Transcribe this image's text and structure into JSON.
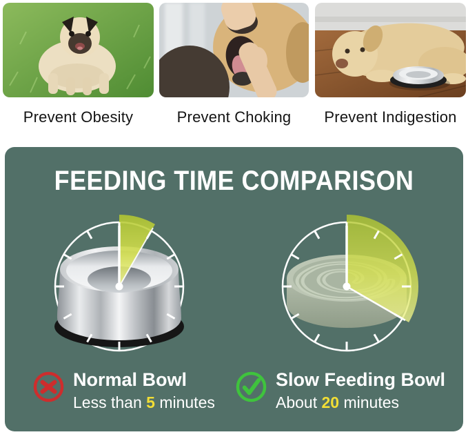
{
  "benefits": [
    {
      "caption": "Prevent Obesity",
      "image": "fat-pug-on-grass-photo"
    },
    {
      "caption": "Prevent Choking",
      "image": "hand-checking-dog-mouth-photo"
    },
    {
      "caption": "Prevent Indigestion",
      "image": "labrador-lying-by-bowl-photo"
    }
  ],
  "panel": {
    "title": "FEEDING TIME COMPARISON"
  },
  "comparison": {
    "left": {
      "icon": "x-icon",
      "name": "Normal Bowl",
      "duration_prefix": "Less than ",
      "duration_value": "5",
      "duration_suffix": " minutes",
      "minutes": 5,
      "bowl": "stainless-steel-bowl"
    },
    "right": {
      "icon": "check-icon",
      "name": "Slow Feeding Bowl",
      "duration_prefix": "About ",
      "duration_value": "20",
      "duration_suffix": " minutes",
      "minutes": 20,
      "bowl": "slow-feeder-bowl"
    }
  },
  "colors": {
    "panel_bg": "#527068",
    "wedge_yellow": "#c3d23c",
    "highlight_yellow": "#f2de35",
    "cross_red": "#cd2d2d",
    "check_green": "#3fc33d",
    "title_text": "#ffffff",
    "caption_text": "#141414"
  }
}
